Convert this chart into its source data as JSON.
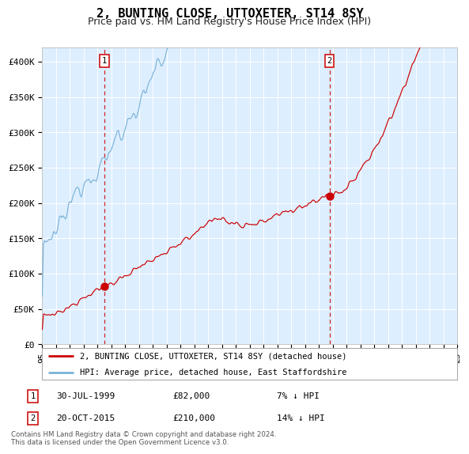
{
  "title": "2, BUNTING CLOSE, UTTOXETER, ST14 8SY",
  "subtitle": "Price paid vs. HM Land Registry's House Price Index (HPI)",
  "legend_line1": "2, BUNTING CLOSE, UTTOXETER, ST14 8SY (detached house)",
  "legend_line2": "HPI: Average price, detached house, East Staffordshire",
  "sale1_date": "30-JUL-1999",
  "sale1_price": 82000,
  "sale1_label": "7% ↓ HPI",
  "sale2_date": "20-OCT-2015",
  "sale2_price": 210000,
  "sale2_label": "14% ↓ HPI",
  "footnote": "Contains HM Land Registry data © Crown copyright and database right 2024.\nThis data is licensed under the Open Government Licence v3.0.",
  "hpi_color": "#7ab3d8",
  "price_color": "#cc0000",
  "dot_color": "#cc0000",
  "vline_color": "#cc0000",
  "plot_bg": "#ddeeff",
  "ylim": [
    0,
    420000
  ],
  "yticks": [
    0,
    50000,
    100000,
    150000,
    200000,
    250000,
    300000,
    350000,
    400000
  ],
  "ytick_labels": [
    "£0",
    "£50K",
    "£100K",
    "£150K",
    "£200K",
    "£250K",
    "£300K",
    "£350K",
    "£400K"
  ],
  "title_fontsize": 11,
  "subtitle_fontsize": 9,
  "tick_fontsize": 8
}
